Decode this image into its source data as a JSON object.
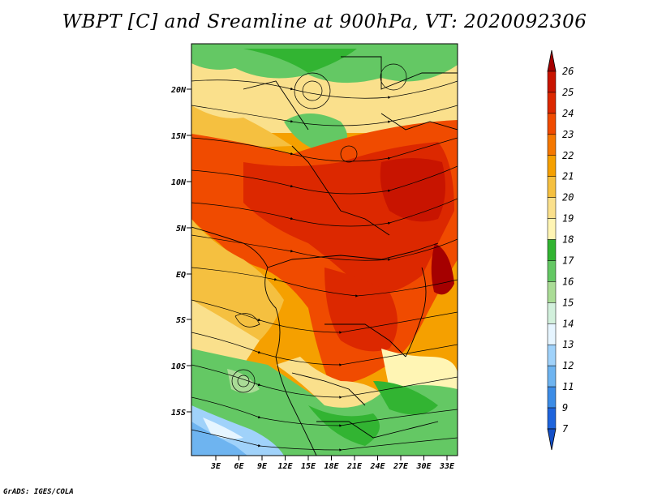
{
  "title": "WBPT [C] and Sreamline at 900hPa, VT: 2020092306",
  "footer": "GrADS: IGES/COLA",
  "map": {
    "lat_labels": [
      "20N",
      "15N",
      "10N",
      "5N",
      "EQ",
      "5S",
      "10S",
      "15S"
    ],
    "lon_labels": [
      "3E",
      "6E",
      "9E",
      "12E",
      "15E",
      "18E",
      "21E",
      "24E",
      "27E",
      "30E",
      "33E"
    ]
  },
  "colorbar": {
    "labels": [
      "26",
      "25",
      "24",
      "23",
      "22",
      "21",
      "20",
      "19",
      "18",
      "17",
      "16",
      "15",
      "14",
      "13",
      "12",
      "11",
      "9",
      "7"
    ],
    "colors": [
      "#a50000",
      "#c81400",
      "#dc2800",
      "#f04b00",
      "#f57800",
      "#f5a000",
      "#f5c040",
      "#fae08c",
      "#fff5b4",
      "#32b432",
      "#64c864",
      "#aadc96",
      "#d2f0dc",
      "#e6f5ff",
      "#a0d2fa",
      "#6eb4f0",
      "#3c8ce6",
      "#1e64dc",
      "#1450c8"
    ]
  }
}
